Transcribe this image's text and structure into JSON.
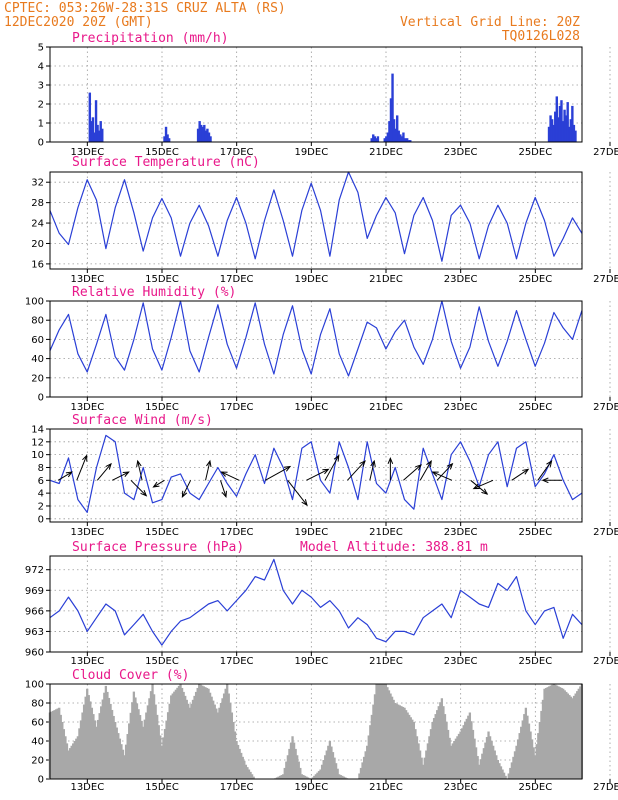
{
  "header": {
    "source_location": "CPTEC:  053:26W-28:31S  CRUZ ALTA (RS)",
    "run_time": "12DEC2020 20Z (GMT)",
    "grid_note": "Vertical Grid Line: 20Z",
    "model_code": "TQ0126L028"
  },
  "colors": {
    "header": "#e87a1e",
    "panel_title": "#e8188a",
    "line": "#2a3fd6",
    "bar": "#2a3fd6",
    "cloud": "#a8a8a8",
    "arrow": "#000000"
  },
  "x_ticks": [
    "13DEC",
    "15DEC",
    "17DEC",
    "19DEC",
    "21DEC",
    "23DEC",
    "25DEC",
    "27DEC"
  ],
  "chart_data": [
    {
      "type": "bar",
      "title": "Precipitation (mm/h)",
      "x_range_days": [
        "12DEC 20Z",
        "27DEC 02Z"
      ],
      "ylim": [
        0,
        5
      ],
      "yticks": [
        0,
        1,
        2,
        3,
        4,
        5
      ],
      "events": [
        {
          "day": 13.9,
          "values": [
            2.6,
            1.1,
            1.3,
            0.5,
            2.2,
            0.9,
            0.6,
            1.1,
            0.7
          ]
        },
        {
          "day": 15.9,
          "values": [
            0.3,
            0.8,
            0.4,
            0.2
          ]
        },
        {
          "day": 16.8,
          "values": [
            0.7,
            1.1,
            0.9,
            0.8,
            0.9,
            0.6,
            0.7,
            0.5,
            0.3
          ]
        },
        {
          "day": 21.45,
          "values": [
            0.2,
            0.4,
            0.3,
            0.2,
            0.3
          ]
        },
        {
          "day": 21.8,
          "values": [
            0.2,
            0.3,
            0.5,
            1.1,
            2.3,
            3.6,
            1.2,
            0.7,
            1.4,
            0.6,
            0.4,
            0.3,
            0.5,
            0.2
          ]
        },
        {
          "day": 22.4,
          "values": [
            0.2,
            0.1,
            0.1
          ]
        },
        {
          "day": 26.2,
          "values": [
            0.8,
            1.4,
            1.2,
            0.9,
            1.6,
            2.4,
            1.3,
            1.9,
            2.2,
            1.1,
            1.7,
            1.4,
            2.1,
            0.8,
            1.2,
            1.9,
            0.9,
            0.6
          ]
        }
      ]
    },
    {
      "type": "line",
      "title": "Surface Temperature (nC)",
      "ylim": [
        15,
        34
      ],
      "yticks": [
        16,
        20,
        24,
        28,
        32
      ],
      "x": [
        12.83,
        13.08,
        13.33,
        13.58,
        13.83,
        14.08,
        14.33,
        14.58,
        14.83,
        15.08,
        15.33,
        15.58,
        15.83,
        16.08,
        16.33,
        16.58,
        16.83,
        17.08,
        17.33,
        17.58,
        17.83,
        18.08,
        18.33,
        18.58,
        18.83,
        19.08,
        19.33,
        19.58,
        19.83,
        20.08,
        20.33,
        20.58,
        20.83,
        21.08,
        21.33,
        21.58,
        21.83,
        22.08,
        22.33,
        22.58,
        22.83,
        23.08,
        23.33,
        23.58,
        23.83,
        24.08,
        24.33,
        24.58,
        24.83,
        25.08,
        25.33,
        25.58,
        25.83,
        26.08,
        26.33,
        26.58,
        26.83,
        27.08
      ],
      "y": [
        26.5,
        22,
        19.8,
        27,
        32.5,
        28.5,
        19,
        27,
        32.5,
        26,
        18.5,
        25,
        28.8,
        25,
        17.5,
        24,
        27.5,
        23.5,
        17.5,
        24.5,
        29,
        24,
        17,
        24.5,
        30.5,
        24.5,
        17.5,
        26.5,
        31.8,
        26.5,
        17.5,
        28.5,
        34,
        30,
        21,
        25.5,
        29,
        26,
        18,
        25.5,
        29,
        24.5,
        16.5,
        25.5,
        27.5,
        24,
        17,
        23.5,
        27.5,
        24,
        17,
        24,
        29,
        24.5,
        17.5,
        21,
        25,
        22
      ]
    },
    {
      "type": "line",
      "title": "Relative Humidity (%)",
      "ylim": [
        0,
        100
      ],
      "yticks": [
        0,
        20,
        40,
        60,
        80,
        100
      ],
      "x": [
        12.83,
        13.08,
        13.33,
        13.58,
        13.83,
        14.08,
        14.33,
        14.58,
        14.83,
        15.08,
        15.33,
        15.58,
        15.83,
        16.08,
        16.33,
        16.58,
        16.83,
        17.08,
        17.33,
        17.58,
        17.83,
        18.08,
        18.33,
        18.58,
        18.83,
        19.08,
        19.33,
        19.58,
        19.83,
        20.08,
        20.33,
        20.58,
        20.83,
        21.08,
        21.33,
        21.58,
        21.83,
        22.08,
        22.33,
        22.58,
        22.83,
        23.08,
        23.33,
        23.58,
        23.83,
        24.08,
        24.33,
        24.58,
        24.83,
        25.08,
        25.33,
        25.58,
        25.83,
        26.08,
        26.33,
        26.58,
        26.83,
        27.08
      ],
      "y": [
        48,
        70,
        86,
        45,
        26,
        55,
        86,
        42,
        28,
        60,
        98,
        50,
        28,
        62,
        100,
        48,
        26,
        62,
        96,
        55,
        30,
        62,
        98,
        55,
        24,
        65,
        95,
        50,
        24,
        65,
        92,
        45,
        22,
        50,
        78,
        72,
        50,
        68,
        80,
        52,
        34,
        60,
        100,
        58,
        30,
        52,
        94,
        58,
        32,
        58,
        90,
        60,
        32,
        56,
        88,
        72,
        60,
        90
      ]
    },
    {
      "type": "line",
      "title": "Surface Wind (m/s)",
      "ylim": [
        -0.5,
        14
      ],
      "yticks": [
        0,
        2,
        4,
        6,
        8,
        10,
        12,
        14
      ],
      "x": [
        12.83,
        13.08,
        13.33,
        13.58,
        13.83,
        14.08,
        14.33,
        14.58,
        14.83,
        15.08,
        15.33,
        15.58,
        15.83,
        16.08,
        16.33,
        16.58,
        16.83,
        17.08,
        17.33,
        17.58,
        17.83,
        18.08,
        18.33,
        18.58,
        18.83,
        19.08,
        19.33,
        19.58,
        19.83,
        20.08,
        20.33,
        20.58,
        20.83,
        21.08,
        21.33,
        21.58,
        21.83,
        22.08,
        22.33,
        22.58,
        22.83,
        23.08,
        23.33,
        23.58,
        23.83,
        24.08,
        24.33,
        24.58,
        24.83,
        25.08,
        25.33,
        25.58,
        25.83,
        26.08,
        26.33,
        26.58,
        26.83,
        27.08
      ],
      "y": [
        6,
        5.5,
        9.5,
        3,
        1,
        8,
        13,
        12,
        4,
        3,
        8,
        2.5,
        3,
        6.5,
        7,
        4,
        3,
        5.5,
        8,
        5.5,
        3.5,
        7,
        10,
        5.5,
        11,
        8,
        3,
        11,
        12,
        6,
        4,
        12,
        8,
        3,
        12,
        5.5,
        4,
        8,
        3,
        1.5,
        11,
        7,
        3,
        10,
        12,
        9,
        5,
        10,
        12,
        5,
        11,
        12,
        5,
        7,
        10,
        6,
        3,
        4
      ],
      "arrows": [
        {
          "day": 13.05,
          "u": 2.5,
          "v": 1.5
        },
        {
          "day": 13.55,
          "u": 1.8,
          "v": 4.5
        },
        {
          "day": 14.1,
          "u": 2.5,
          "v": 3.0
        },
        {
          "day": 14.5,
          "u": 3.0,
          "v": 1.5
        },
        {
          "day": 15.0,
          "u": 2.8,
          "v": -2.8
        },
        {
          "day": 15.3,
          "u": -0.8,
          "v": 3.5
        },
        {
          "day": 15.9,
          "u": -2.0,
          "v": -1.2
        },
        {
          "day": 16.6,
          "u": -1.5,
          "v": -3.0
        },
        {
          "day": 17.0,
          "u": 0.8,
          "v": 3.5
        },
        {
          "day": 17.4,
          "u": 1.0,
          "v": -3.0
        },
        {
          "day": 17.9,
          "u": -3.2,
          "v": 1.5
        },
        {
          "day": 18.6,
          "u": 4.5,
          "v": 2.5
        },
        {
          "day": 19.2,
          "u": 3.5,
          "v": -4.5
        },
        {
          "day": 19.7,
          "u": 4.0,
          "v": 2.0
        },
        {
          "day": 20.2,
          "u": 2.5,
          "v": 4.5
        },
        {
          "day": 20.8,
          "u": 3.2,
          "v": 3.5
        },
        {
          "day": 21.4,
          "u": 0.8,
          "v": 3.5
        },
        {
          "day": 21.95,
          "u": 0.0,
          "v": 4.0
        },
        {
          "day": 22.3,
          "u": 3.2,
          "v": 2.8
        },
        {
          "day": 22.75,
          "u": 2.0,
          "v": 3.5
        },
        {
          "day": 23.2,
          "u": 2.8,
          "v": 3.0
        },
        {
          "day": 23.6,
          "u": -3.5,
          "v": 1.5
        },
        {
          "day": 24.1,
          "u": 3.0,
          "v": -2.5
        },
        {
          "day": 24.7,
          "u": -3.5,
          "v": -1.5
        },
        {
          "day": 25.2,
          "u": 3.0,
          "v": 2.0
        },
        {
          "day": 25.9,
          "u": 2.5,
          "v": 3.5
        },
        {
          "day": 26.55,
          "u": -3.5,
          "v": 0.0
        }
      ]
    },
    {
      "type": "line",
      "title": "Surface Pressure (hPa)",
      "annotation": "Model Altitude: 388.81 m",
      "ylim": [
        960,
        974
      ],
      "yticks": [
        960,
        963,
        966,
        969,
        972
      ],
      "x": [
        12.83,
        13.08,
        13.33,
        13.58,
        13.83,
        14.08,
        14.33,
        14.58,
        14.83,
        15.08,
        15.33,
        15.58,
        15.83,
        16.08,
        16.33,
        16.58,
        16.83,
        17.08,
        17.33,
        17.58,
        17.83,
        18.08,
        18.33,
        18.58,
        18.83,
        19.08,
        19.33,
        19.58,
        19.83,
        20.08,
        20.33,
        20.58,
        20.83,
        21.08,
        21.33,
        21.58,
        21.83,
        22.08,
        22.33,
        22.58,
        22.83,
        23.08,
        23.33,
        23.58,
        23.83,
        24.08,
        24.33,
        24.58,
        24.83,
        25.08,
        25.33,
        25.58,
        25.83,
        26.08,
        26.33,
        26.58,
        26.83,
        27.08
      ],
      "y": [
        965,
        966,
        968,
        966,
        963,
        965,
        967,
        966,
        962.5,
        964,
        965.5,
        963,
        961,
        963,
        964.5,
        965,
        966,
        967,
        967.5,
        966,
        967.5,
        969,
        971,
        970.5,
        973.5,
        969,
        967,
        969,
        968,
        966.5,
        967.5,
        966,
        963.5,
        965,
        964,
        962,
        961.5,
        963,
        963,
        962.5,
        965,
        966,
        967,
        965,
        969,
        968,
        967,
        966.5,
        970,
        969,
        971,
        966,
        964,
        966,
        966.5,
        962,
        965.5,
        964
      ]
    },
    {
      "type": "area",
      "title": "Cloud Cover (%)",
      "ylim": [
        0,
        100
      ],
      "yticks": [
        0,
        20,
        40,
        60,
        80,
        100
      ],
      "x": [
        12.83,
        13.08,
        13.33,
        13.58,
        13.83,
        14.08,
        14.33,
        14.58,
        14.83,
        15.08,
        15.33,
        15.58,
        15.83,
        16.08,
        16.33,
        16.58,
        16.83,
        17.08,
        17.33,
        17.58,
        17.83,
        18.08,
        18.33,
        18.58,
        18.83,
        19.08,
        19.33,
        19.58,
        19.83,
        20.08,
        20.33,
        20.58,
        20.83,
        21.08,
        21.33,
        21.58,
        21.83,
        22.08,
        22.33,
        22.58,
        22.83,
        23.08,
        23.33,
        23.58,
        23.83,
        24.08,
        24.33,
        24.58,
        24.83,
        25.08,
        25.33,
        25.58,
        25.83,
        26.08,
        26.33,
        26.58,
        26.83,
        27.08
      ],
      "y": [
        70,
        75,
        30,
        45,
        95,
        55,
        98,
        60,
        25,
        92,
        55,
        100,
        35,
        88,
        100,
        75,
        100,
        95,
        70,
        100,
        40,
        15,
        0,
        0,
        0,
        5,
        45,
        5,
        0,
        10,
        40,
        5,
        0,
        0,
        35,
        100,
        100,
        80,
        75,
        60,
        15,
        60,
        85,
        35,
        50,
        70,
        15,
        50,
        20,
        0,
        35,
        75,
        25,
        95,
        100,
        95,
        85,
        100
      ]
    }
  ]
}
